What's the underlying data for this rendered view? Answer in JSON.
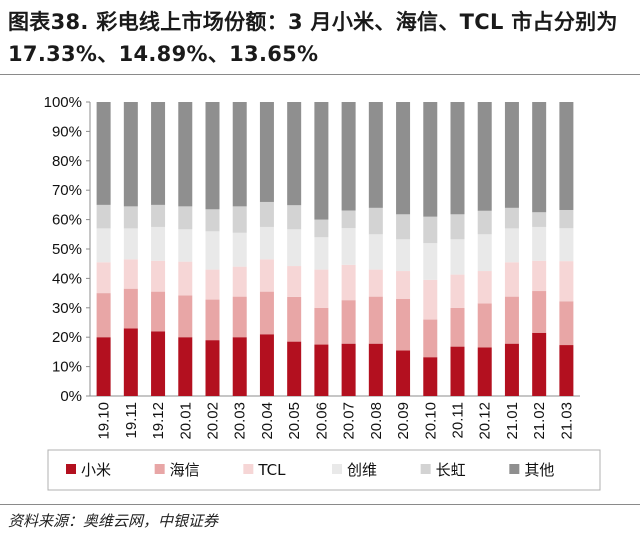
{
  "header": {
    "title": "图表38. 彩电线上市场份额：3 月小米、海信、TCL 市占分别为 17.33%、14.89%、13.65%"
  },
  "footer": {
    "source": "资料来源：奥维云网，中银证券"
  },
  "chart_data": {
    "type": "bar",
    "stacked": true,
    "percent": true,
    "categories": [
      "19.10",
      "19.11",
      "19.12",
      "20.01",
      "20.02",
      "20.03",
      "20.04",
      "20.05",
      "20.06",
      "20.07",
      "20.08",
      "20.09",
      "20.10",
      "20.11",
      "20.12",
      "21.01",
      "21.02",
      "21.03"
    ],
    "y_ticks": [
      "0%",
      "10%",
      "20%",
      "30%",
      "40%",
      "50%",
      "60%",
      "70%",
      "80%",
      "90%",
      "100%"
    ],
    "ylim": [
      0,
      100
    ],
    "legend_position": "bottom",
    "series": [
      {
        "name": "小米",
        "color": "#b3101f",
        "values": [
          20,
          23,
          22,
          20,
          19,
          20,
          21,
          18.5,
          17.5,
          17.8,
          17.8,
          15.5,
          13.2,
          16.8,
          16.5,
          17.8,
          21.5,
          17.33
        ]
      },
      {
        "name": "海信",
        "color": "#e8a6a6",
        "values": [
          15,
          13.5,
          13.5,
          14.2,
          13.8,
          13.8,
          14.5,
          15.2,
          12.5,
          14.8,
          16,
          17.5,
          12.8,
          13.2,
          15,
          16,
          14.2,
          14.89
        ]
      },
      {
        "name": "TCL",
        "color": "#f6d6d6",
        "values": [
          10.5,
          10,
          10.5,
          11.5,
          10.2,
          10.2,
          11,
          10.5,
          13,
          12,
          9.2,
          9.5,
          13.5,
          11.3,
          11,
          11.7,
          10.3,
          13.65
        ]
      },
      {
        "name": "创维",
        "color": "#e9e9e9",
        "values": [
          11.5,
          10.5,
          11.5,
          11,
          13,
          11.5,
          11,
          12.5,
          11,
          12.5,
          12,
          10.8,
          12.5,
          12,
          12.5,
          11.5,
          11.5,
          11.2
        ]
      },
      {
        "name": "长虹",
        "color": "#d3d3d3",
        "values": [
          8,
          7.5,
          7.5,
          7.8,
          7.5,
          9,
          8.5,
          8.2,
          6,
          6,
          9,
          8.5,
          9,
          8.5,
          8,
          7,
          5,
          6.2
        ]
      },
      {
        "name": "其他",
        "color": "#8f8f8f",
        "values": [
          35,
          35.5,
          35,
          35.5,
          36.5,
          35.5,
          34,
          35.1,
          40,
          36.9,
          36,
          38.2,
          39,
          38.2,
          37,
          36,
          37.5,
          36.73
        ]
      }
    ]
  }
}
